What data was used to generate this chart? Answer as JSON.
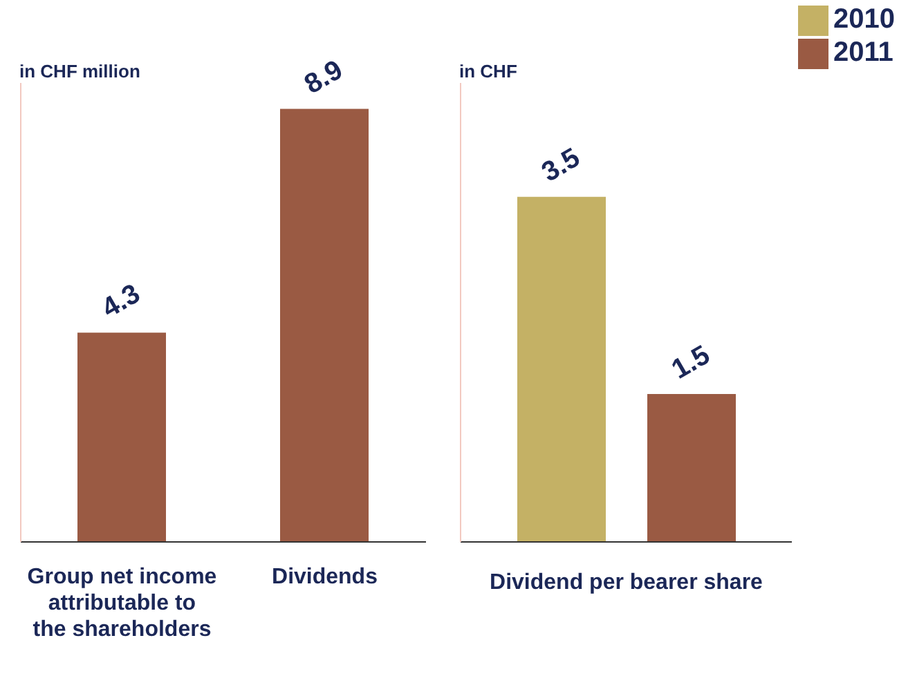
{
  "chart_data": [
    {
      "type": "bar",
      "ylabel": "in CHF million",
      "categories": [
        "Group net income attributable to the shareholders",
        "Dividends"
      ],
      "series": [
        {
          "color": "#9a5a43",
          "values": [
            4.3,
            8.9
          ]
        }
      ],
      "data_labels": true,
      "legend": false
    },
    {
      "type": "bar",
      "ylabel": "in CHF",
      "xlabel": "Dividend per bearer share",
      "categories": [
        null
      ],
      "series": [
        {
          "name": "2010",
          "color": "#c4b165",
          "values": [
            3.5
          ]
        },
        {
          "name": "2011",
          "color": "#9a5a43",
          "values": [
            1.5
          ]
        }
      ],
      "data_labels": true,
      "legend": "top right"
    }
  ]
}
